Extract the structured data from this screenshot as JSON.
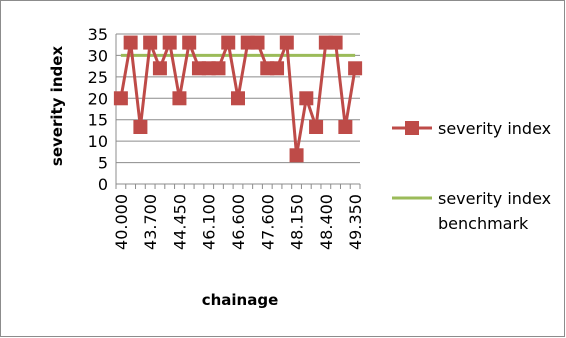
{
  "chart_data": {
    "type": "line",
    "title": "",
    "xlabel": "chainage",
    "ylabel": "severity index",
    "ylim": [
      0,
      35
    ],
    "yticks": [
      0,
      5,
      10,
      15,
      20,
      25,
      30,
      35
    ],
    "x_tick_labels": [
      "40.000",
      "43.700",
      "44.450",
      "46.100",
      "46.600",
      "47.600",
      "48.150",
      "48.400",
      "49.350"
    ],
    "grid": "horizontal",
    "legend_position": "right",
    "series": [
      {
        "name": "severity index",
        "color": "#be4b48",
        "marker": "square",
        "values": [
          20,
          33,
          13.3,
          33,
          27,
          33,
          20,
          33,
          27,
          27,
          27,
          33,
          20,
          33,
          33,
          27,
          27,
          33,
          6.7,
          20,
          13.3,
          33,
          33,
          13.3,
          27
        ]
      },
      {
        "name": "severity index benchmark",
        "color": "#9bbb59",
        "marker": "none",
        "values": [
          30,
          30,
          30,
          30,
          30,
          30,
          30,
          30,
          30,
          30,
          30,
          30,
          30,
          30,
          30,
          30,
          30,
          30,
          30,
          30,
          30,
          30,
          30,
          30,
          30
        ]
      }
    ]
  }
}
